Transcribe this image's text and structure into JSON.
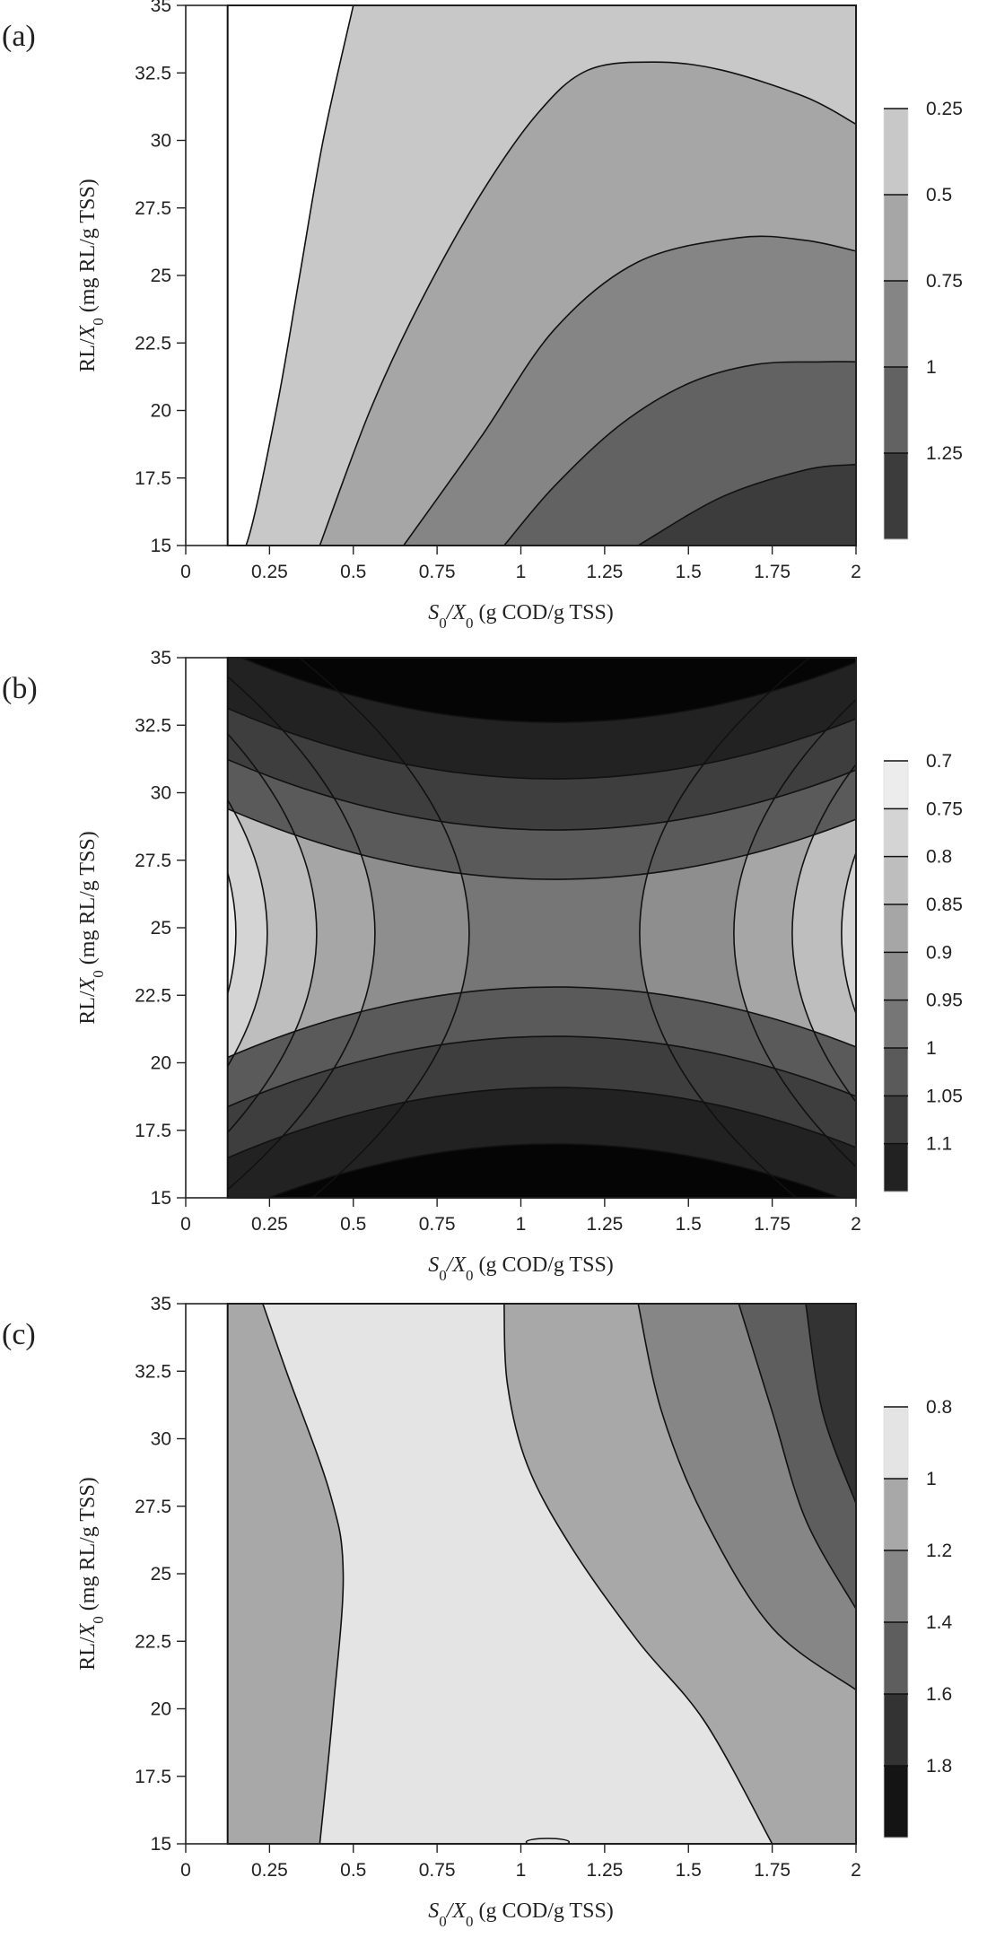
{
  "figure": {
    "x_label": {
      "pre": "S",
      "sub": "0",
      "mid": "/X",
      "sub2": "0",
      "post": " (g COD/g TSS)"
    },
    "y_label": {
      "pre": "RL/X",
      "sub": "0",
      "post": " (mg RL/g TSS)"
    }
  },
  "chart_data": [
    {
      "type": "contour",
      "panel_label": "(a)",
      "xlim": [
        0,
        2
      ],
      "ylim": [
        15,
        35
      ],
      "x_ticks": [
        "0",
        "0.25",
        "0.5",
        "0.75",
        "1",
        "1.25",
        "1.5",
        "1.75",
        "2"
      ],
      "y_ticks": [
        "15",
        "17.5",
        "20",
        "22.5",
        "25",
        "27.5",
        "30",
        "32.5",
        "35"
      ],
      "data_region_x": [
        0.125,
        2
      ],
      "colorbar_levels": [
        "0.25",
        "0.5",
        "0.75",
        "1",
        "1.25"
      ],
      "fill_colors": [
        "#ffffff",
        "#c8c8c8",
        "#a6a6a6",
        "#858585",
        "#626262",
        "#3c3c3c",
        "#0a0a0a"
      ],
      "contours": [
        {
          "level": 0.25,
          "points": [
            [
              0.125,
              15
            ],
            [
              0.18,
              15
            ],
            [
              0.27,
              20
            ],
            [
              0.34,
              25
            ],
            [
              0.41,
              30
            ],
            [
              0.5,
              35
            ]
          ]
        },
        {
          "level": 0.5,
          "points": [
            [
              0.4,
              15
            ],
            [
              0.55,
              20
            ],
            [
              0.7,
              24
            ],
            [
              0.88,
              28
            ],
            [
              1.05,
              31
            ],
            [
              1.2,
              32.6
            ],
            [
              1.4,
              32.9
            ],
            [
              1.6,
              32.6
            ],
            [
              1.85,
              31.6
            ],
            [
              2,
              30.6
            ]
          ]
        },
        {
          "level": 0.75,
          "points": [
            [
              0.65,
              15
            ],
            [
              0.88,
              19
            ],
            [
              1.1,
              23
            ],
            [
              1.35,
              25.5
            ],
            [
              1.65,
              26.4
            ],
            [
              1.85,
              26.3
            ],
            [
              2,
              25.9
            ]
          ]
        },
        {
          "level": 1,
          "points": [
            [
              0.95,
              15
            ],
            [
              1.1,
              17.2
            ],
            [
              1.3,
              19.5
            ],
            [
              1.5,
              21
            ],
            [
              1.7,
              21.7
            ],
            [
              1.9,
              21.8
            ],
            [
              2,
              21.8
            ]
          ]
        },
        {
          "level": 1.25,
          "points": [
            [
              1.35,
              15
            ],
            [
              1.6,
              16.8
            ],
            [
              1.85,
              17.8
            ],
            [
              2,
              18
            ]
          ]
        }
      ]
    },
    {
      "type": "contour",
      "panel_label": "(b)",
      "xlim": [
        0,
        2
      ],
      "ylim": [
        15,
        35
      ],
      "x_ticks": [
        "0",
        "0.25",
        "0.5",
        "0.75",
        "1",
        "1.25",
        "1.5",
        "1.75",
        "2"
      ],
      "y_ticks": [
        "15",
        "17.5",
        "20",
        "22.5",
        "25",
        "27.5",
        "30",
        "32.5",
        "35"
      ],
      "data_region_x": [
        0.125,
        2
      ],
      "colorbar_levels": [
        "0.7",
        "0.75",
        "0.8",
        "0.85",
        "0.9",
        "0.95",
        "1",
        "1.05",
        "1.1"
      ],
      "fill_colors": [
        "#ececec",
        "#d4d4d4",
        "#bebebe",
        "#a6a6a6",
        "#8e8e8e",
        "#767676",
        "#5a5a5a",
        "#3e3e3e",
        "#222222",
        "#050505"
      ],
      "center": [
        1.1,
        24.8
      ]
    },
    {
      "type": "contour",
      "panel_label": "(c)",
      "xlim": [
        0,
        2
      ],
      "ylim": [
        15,
        35
      ],
      "x_ticks": [
        "0",
        "0.25",
        "0.5",
        "0.75",
        "1",
        "1.25",
        "1.5",
        "1.75",
        "2"
      ],
      "y_ticks": [
        "15",
        "17.5",
        "20",
        "22.5",
        "25",
        "27.5",
        "30",
        "32.5",
        "35"
      ],
      "data_region_x": [
        0.125,
        2
      ],
      "colorbar_levels": [
        "0.8",
        "1",
        "1.2",
        "1.4",
        "1.6",
        "1.8"
      ],
      "fill_colors": [
        "#e4e4e4",
        "#a8a8a8",
        "#868686",
        "#5e5e5e",
        "#333333",
        "#141414"
      ],
      "contours": [
        {
          "level": 1.2,
          "points": [
            [
              0.23,
              35
            ],
            [
              0.3,
              32.5
            ],
            [
              0.43,
              28
            ],
            [
              0.47,
              25
            ],
            [
              0.44,
              20
            ],
            [
              0.4,
              15
            ]
          ]
        },
        {
          "level": 1.2,
          "points": [
            [
              0.95,
              35
            ],
            [
              0.96,
              32
            ],
            [
              1.02,
              29
            ],
            [
              1.15,
              26
            ],
            [
              1.35,
              22.5
            ],
            [
              1.55,
              19.5
            ],
            [
              1.75,
              15
            ]
          ]
        },
        {
          "level": 1.4,
          "points": [
            [
              1.35,
              35
            ],
            [
              1.42,
              31
            ],
            [
              1.55,
              27
            ],
            [
              1.75,
              23
            ],
            [
              2,
              20.7
            ]
          ]
        },
        {
          "level": 1.6,
          "points": [
            [
              1.65,
              35
            ],
            [
              1.75,
              31
            ],
            [
              1.85,
              27
            ],
            [
              2,
              23.7
            ]
          ]
        },
        {
          "level": 1.8,
          "points": [
            [
              1.85,
              35
            ],
            [
              1.9,
              31
            ],
            [
              2,
              27.6
            ]
          ]
        }
      ]
    }
  ]
}
